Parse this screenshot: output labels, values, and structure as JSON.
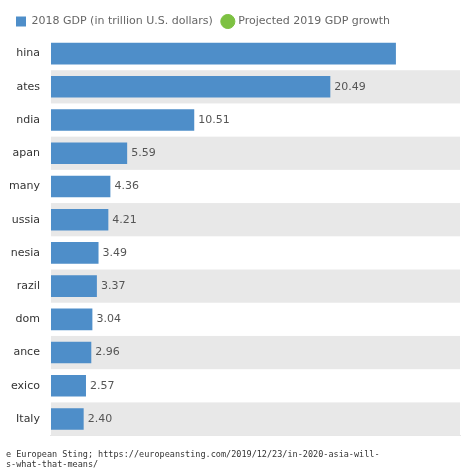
{
  "chart_data": {
    "type": "bar",
    "orientation": "horizontal",
    "categories": [
      "hina",
      "ates",
      "ndia",
      "apan",
      "many",
      "ussia",
      "nesia",
      "razil",
      "dom",
      "ance",
      "exico",
      "Italy"
    ],
    "series": [
      {
        "name": "2018 GDP (in trillion U.S. dollars)",
        "color": "#4E8EC9",
        "values": [
          25.3,
          20.49,
          10.51,
          5.59,
          4.36,
          4.21,
          3.49,
          3.37,
          3.04,
          2.96,
          2.57,
          2.4
        ],
        "value_labels": [
          null,
          "20.49",
          "10.51",
          "5.59",
          "4.36",
          "4.21",
          "3.49",
          "3.37",
          "3.04",
          "2.96",
          "2.57",
          "2.40"
        ]
      },
      {
        "name": "Projected 2019 GDP growth",
        "type": "scatter",
        "marker": "circle",
        "color": "#7DC142",
        "values": [
          null,
          null,
          null,
          null,
          null,
          null,
          null,
          null,
          null,
          null,
          null,
          null
        ]
      }
    ],
    "xlim": [
      0,
      30
    ],
    "data_labels": true,
    "tick_labels": "y",
    "grid": false,
    "legend": "upper left",
    "annotations": [
      "e European Sting; https://europeansting.com/2019/12/23/in-2020-asia-will-",
      "s-what-that-means/"
    ]
  }
}
